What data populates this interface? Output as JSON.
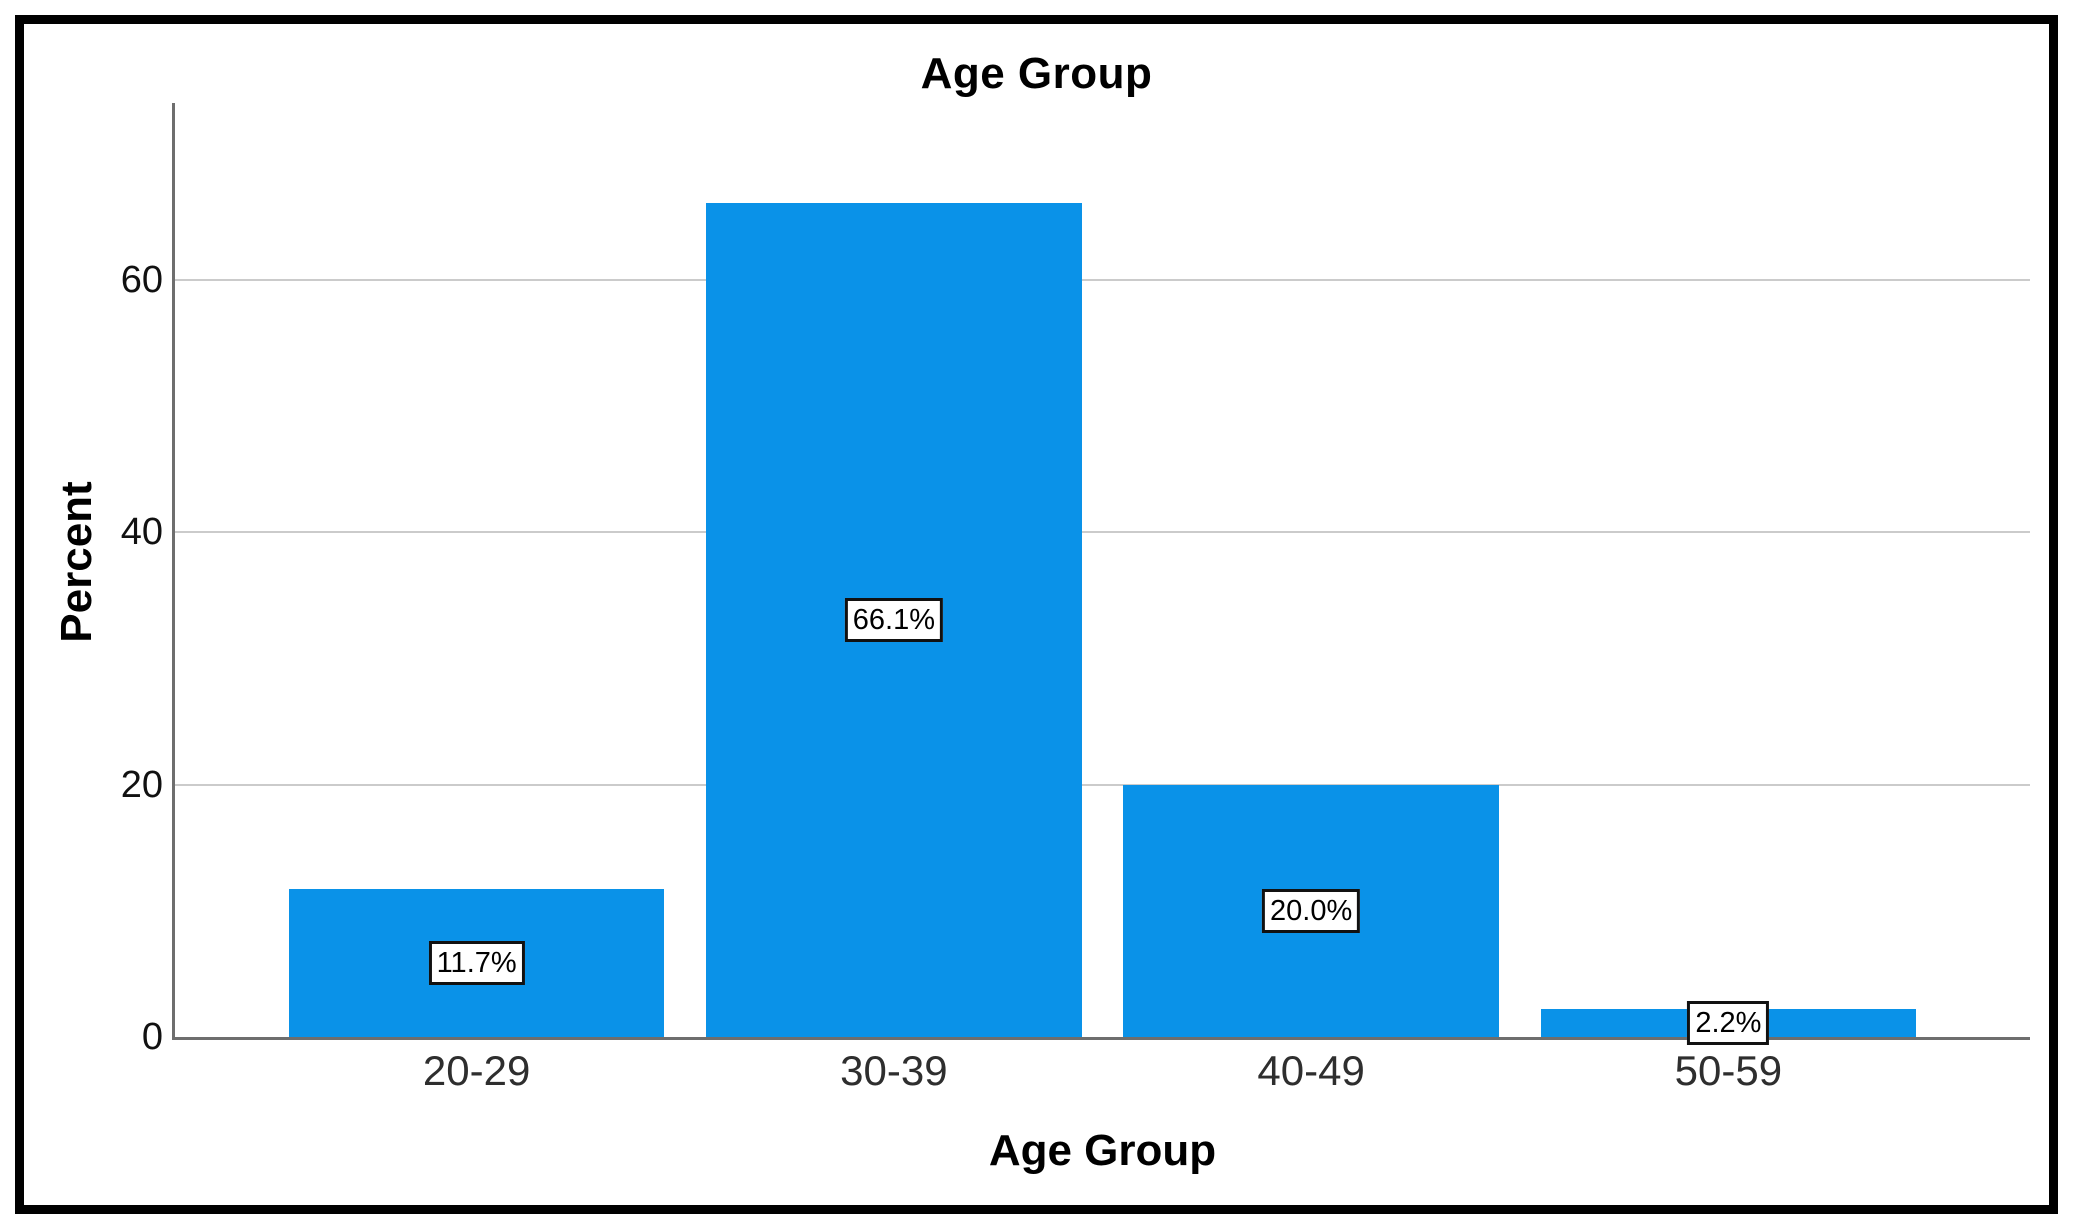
{
  "chart_data": {
    "type": "bar",
    "title": "Age Group",
    "xlabel": "Age Group",
    "ylabel": "Percent",
    "categories": [
      "20-29",
      "30-39",
      "40-49",
      "50-59"
    ],
    "values": [
      11.7,
      66.1,
      20.0,
      2.2
    ],
    "bar_labels": [
      "11.7%",
      "66.1%",
      "20.0%",
      "2.2%"
    ],
    "y_ticks": [
      0,
      20,
      40,
      60
    ],
    "ylim": [
      0,
      74
    ],
    "grid": "horizontal-light-gray",
    "legend": "none",
    "bar_color": "#0a92e8",
    "gridline_color": "#cbcbcb",
    "axis_color": "#6e6e6e",
    "label_box_style": "white box, black border"
  }
}
